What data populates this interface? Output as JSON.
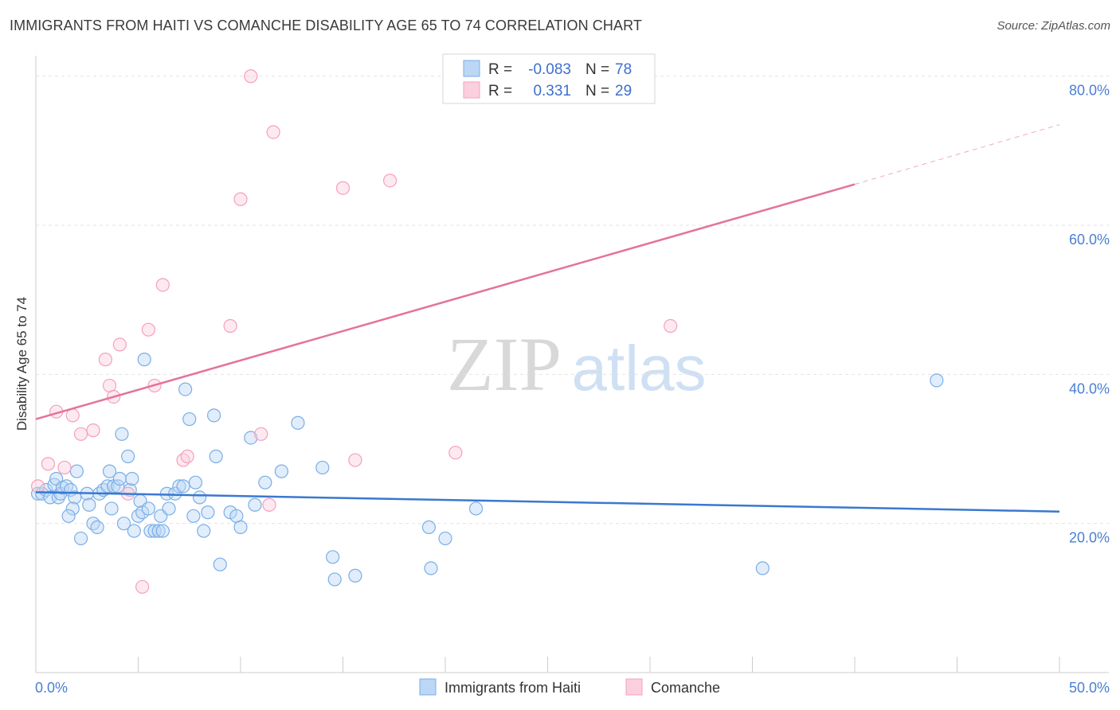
{
  "title": "IMMIGRANTS FROM HAITI VS COMANCHE DISABILITY AGE 65 TO 74 CORRELATION CHART",
  "source": "Source: ZipAtlas.com",
  "watermark": {
    "zip": "ZIP",
    "atlas": "atlas"
  },
  "legend_top": [
    {
      "r_label": "R =",
      "r_value": "-0.083",
      "n_label": "N =",
      "n_value": "78"
    },
    {
      "r_label": "R =",
      "r_value": "0.331",
      "n_label": "N =",
      "n_value": "29"
    }
  ],
  "chart_data": {
    "type": "scatter",
    "title": "IMMIGRANTS FROM HAITI VS COMANCHE DISABILITY AGE 65 TO 74 CORRELATION CHART",
    "xlabel": "",
    "ylabel": "Disability Age 65 to 74",
    "xlim": [
      0,
      50
    ],
    "ylim": [
      0,
      82
    ],
    "x_tick_labels": [
      "0.0%",
      "50.0%"
    ],
    "y_ticks": [
      20,
      40,
      60,
      80
    ],
    "y_tick_labels": [
      "20.0%",
      "40.0%",
      "60.0%",
      "80.0%"
    ],
    "grid": true,
    "legend_placement": "top-center",
    "series": [
      {
        "name": "Immigrants from Haiti",
        "color": "#7aaee8",
        "trend": {
          "x": [
            0,
            50
          ],
          "y": [
            24.2,
            21.6
          ],
          "color": "#3a78d0"
        },
        "points": [
          [
            0.1,
            24
          ],
          [
            0.3,
            24
          ],
          [
            0.5,
            24.5
          ],
          [
            0.7,
            23.5
          ],
          [
            0.9,
            25.2
          ],
          [
            1.0,
            26
          ],
          [
            1.1,
            23.5
          ],
          [
            1.2,
            24
          ],
          [
            1.3,
            24.8
          ],
          [
            1.5,
            25
          ],
          [
            1.7,
            24.5
          ],
          [
            2.0,
            27
          ],
          [
            1.9,
            23.5
          ],
          [
            1.8,
            22
          ],
          [
            1.6,
            21
          ],
          [
            2.2,
            18
          ],
          [
            2.5,
            24
          ],
          [
            2.6,
            22.5
          ],
          [
            2.8,
            20
          ],
          [
            3.0,
            19.5
          ],
          [
            3.1,
            24
          ],
          [
            3.3,
            24.5
          ],
          [
            3.5,
            25
          ],
          [
            3.6,
            27
          ],
          [
            3.7,
            22
          ],
          [
            3.8,
            25
          ],
          [
            4.0,
            25
          ],
          [
            4.1,
            26
          ],
          [
            4.2,
            32
          ],
          [
            4.3,
            20
          ],
          [
            4.5,
            29
          ],
          [
            4.6,
            24.5
          ],
          [
            4.7,
            26
          ],
          [
            4.8,
            19
          ],
          [
            5.0,
            21
          ],
          [
            5.1,
            23
          ],
          [
            5.2,
            21.5
          ],
          [
            5.3,
            42
          ],
          [
            5.5,
            22
          ],
          [
            5.6,
            19
          ],
          [
            5.8,
            19
          ],
          [
            6.0,
            19
          ],
          [
            6.1,
            21
          ],
          [
            6.2,
            19
          ],
          [
            6.4,
            24
          ],
          [
            6.5,
            22
          ],
          [
            6.8,
            24
          ],
          [
            7.0,
            25
          ],
          [
            7.2,
            25
          ],
          [
            7.3,
            38
          ],
          [
            7.5,
            34
          ],
          [
            7.7,
            21
          ],
          [
            7.8,
            25.5
          ],
          [
            8.0,
            23.5
          ],
          [
            8.2,
            19
          ],
          [
            8.4,
            21.5
          ],
          [
            8.7,
            34.5
          ],
          [
            8.8,
            29
          ],
          [
            9.0,
            14.5
          ],
          [
            9.5,
            21.5
          ],
          [
            9.8,
            21
          ],
          [
            10.0,
            19.5
          ],
          [
            10.5,
            31.5
          ],
          [
            10.7,
            22.5
          ],
          [
            11.2,
            25.5
          ],
          [
            12.0,
            27
          ],
          [
            12.8,
            33.5
          ],
          [
            14.0,
            27.5
          ],
          [
            14.5,
            15.5
          ],
          [
            14.6,
            12.5
          ],
          [
            15.6,
            13
          ],
          [
            19.2,
            19.5
          ],
          [
            19.3,
            14
          ],
          [
            20.0,
            18
          ],
          [
            21.5,
            22
          ],
          [
            35.5,
            14
          ],
          [
            44.0,
            39.2
          ]
        ]
      },
      {
        "name": "Comanche",
        "color": "#f4a0bb",
        "trend": {
          "x": [
            0,
            40
          ],
          "y": [
            34,
            65.5
          ],
          "dash_to": [
            50,
            73.5
          ],
          "color": "#e4729c"
        },
        "points": [
          [
            0.1,
            25
          ],
          [
            0.6,
            28
          ],
          [
            1.0,
            35
          ],
          [
            1.4,
            27.5
          ],
          [
            1.8,
            34.5
          ],
          [
            2.2,
            32
          ],
          [
            2.8,
            32.5
          ],
          [
            3.4,
            42
          ],
          [
            3.6,
            38.5
          ],
          [
            3.8,
            37
          ],
          [
            4.1,
            44
          ],
          [
            4.5,
            24
          ],
          [
            5.2,
            11.5
          ],
          [
            5.5,
            46
          ],
          [
            5.8,
            38.5
          ],
          [
            6.2,
            52
          ],
          [
            7.2,
            28.5
          ],
          [
            7.4,
            29
          ],
          [
            9.5,
            46.5
          ],
          [
            10.0,
            63.5
          ],
          [
            10.5,
            80
          ],
          [
            11.0,
            32
          ],
          [
            11.4,
            22.5
          ],
          [
            11.6,
            72.5
          ],
          [
            15.0,
            65
          ],
          [
            15.6,
            28.5
          ],
          [
            17.3,
            66
          ],
          [
            20.5,
            29.5
          ],
          [
            31.0,
            46.5
          ]
        ]
      }
    ]
  }
}
